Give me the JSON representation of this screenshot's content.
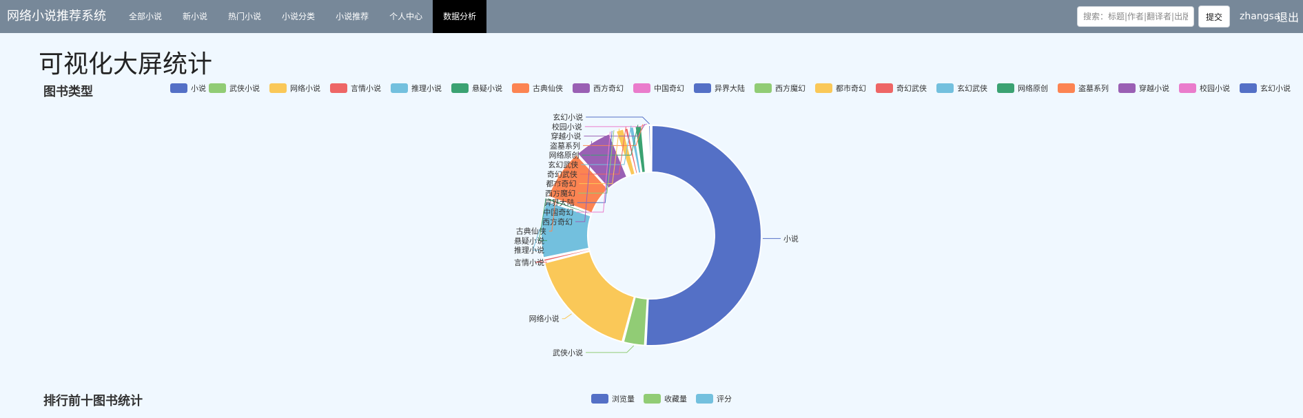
{
  "navbar": {
    "brand": "网络小说推荐系统",
    "links": [
      {
        "label": "全部小说",
        "active": false
      },
      {
        "label": "新小说",
        "active": false
      },
      {
        "label": "热门小说",
        "active": false
      },
      {
        "label": "小说分类",
        "active": false
      },
      {
        "label": "小说推荐",
        "active": false
      },
      {
        "label": "个人中心",
        "active": false
      },
      {
        "label": "数据分析",
        "active": true
      }
    ],
    "search_placeholder": "搜索：标题|作者|翻译者|出版社",
    "submit_label": "提交",
    "username": "zhangsan",
    "logout_label": "退出"
  },
  "page": {
    "title": "可视化大屏统计",
    "section1_title": "图书类型",
    "section2_title": "排行前十图书统计"
  },
  "chart_data": [
    {
      "type": "pie",
      "title": "图书类型",
      "donut": true,
      "legend_position": "top",
      "categories": [
        "小说",
        "武侠小说",
        "网络小说",
        "言情小说",
        "推理小说",
        "悬疑小说",
        "古典仙侠",
        "西方奇幻",
        "中国奇幻",
        "异界大陆",
        "西方魔幻",
        "都市奇幻",
        "奇幻武侠",
        "玄幻武侠",
        "网络原创",
        "盗墓系列",
        "穿越小说",
        "校园小说",
        "玄幻小说"
      ],
      "values": [
        54,
        3.5,
        18,
        0.6,
        9,
        0.6,
        8,
        6,
        0.3,
        0.3,
        0.3,
        1.4,
        0.7,
        0.9,
        1.2,
        0.3,
        0.3,
        0.3,
        0.5
      ],
      "colors": [
        "#5470c6",
        "#91cc75",
        "#fac858",
        "#ee6666",
        "#73c0de",
        "#3ba272",
        "#fc8452",
        "#9a60b4",
        "#ea7ccc"
      ]
    },
    {
      "type": "bar",
      "title": "排行前十图书统计",
      "legend_position": "top",
      "series": [
        {
          "name": "浏览量",
          "color": "#5470c6"
        },
        {
          "name": "收藏量",
          "color": "#91cc75"
        },
        {
          "name": "评分",
          "color": "#73c0de"
        }
      ]
    }
  ]
}
